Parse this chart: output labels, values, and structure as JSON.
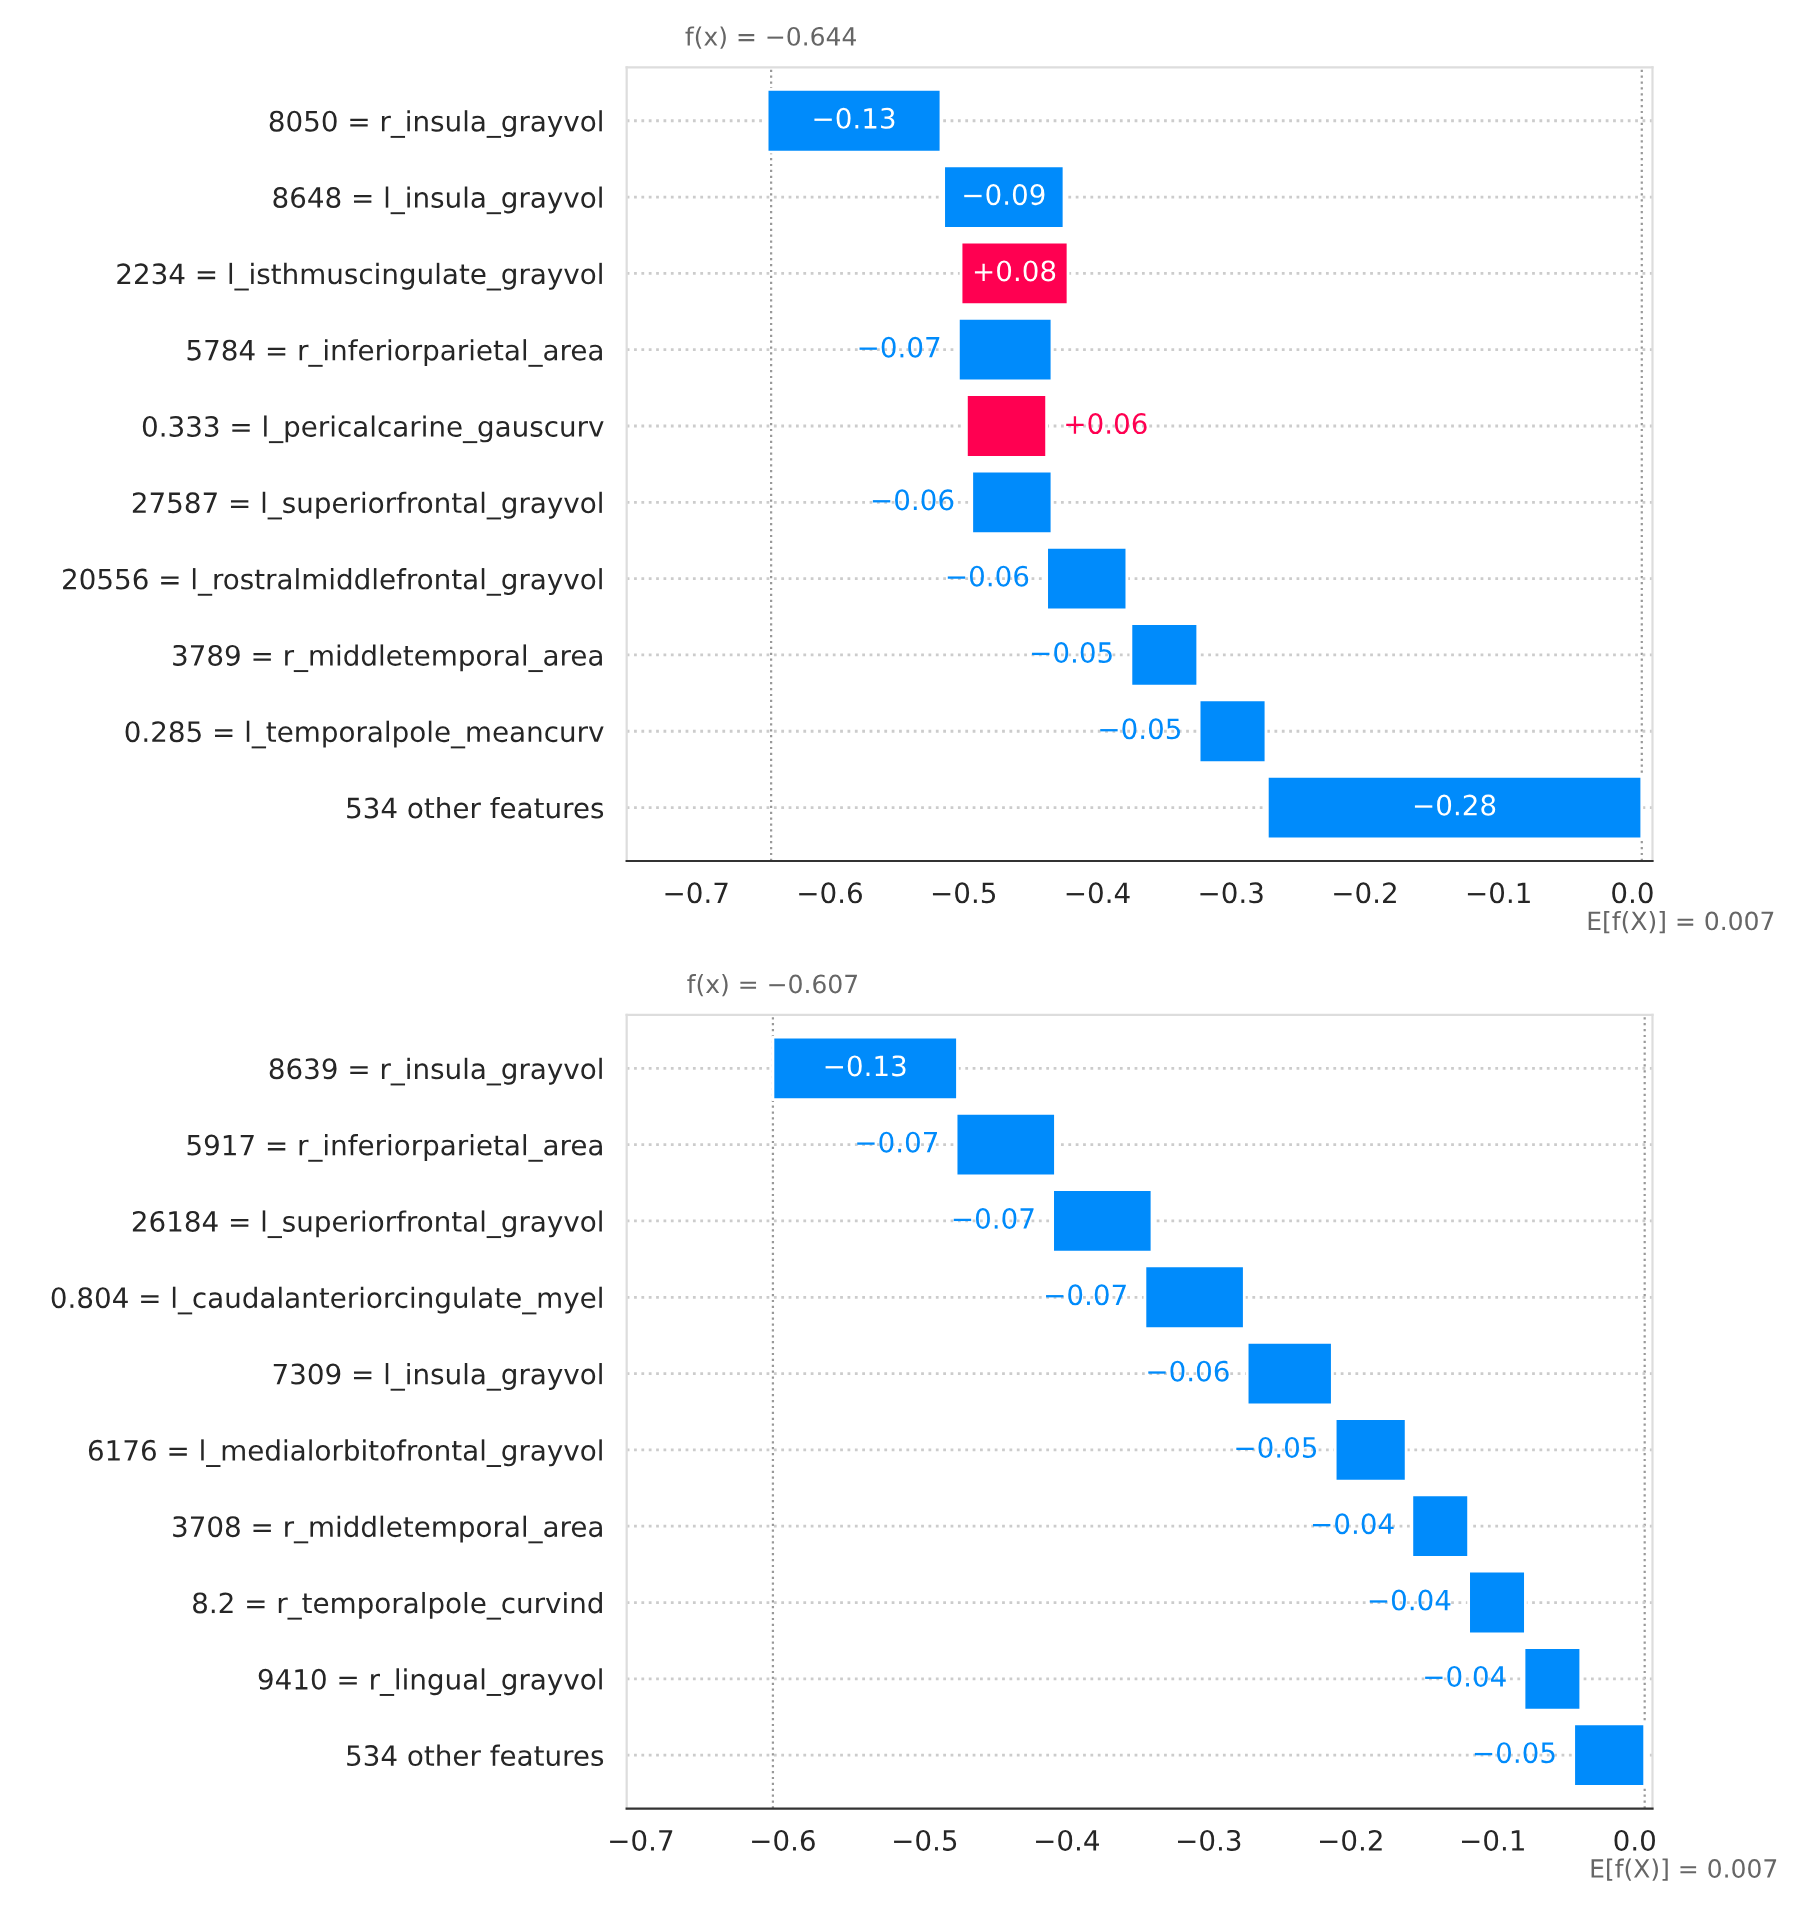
{
  "chart_data": [
    {
      "type": "bar",
      "orientation": "horizontal",
      "categories": [
        "8050 = r_insula_grayvol",
        "8648 = l_insula_grayvol",
        "2234 = l_isthmuscingulate_grayvol",
        "5784 = r_inferiorparietal_area",
        "0.333 = l_pericalcarine_gauscurv",
        "27587 = l_superiorfrontal_grayvol",
        "20556 = l_rostralmiddlefrontal_grayvol",
        "3789 = r_middletemporal_area",
        "0.285 = l_temporalpole_meancurv",
        "534 other features"
      ],
      "values": [
        -0.13,
        -0.09,
        0.08,
        -0.07,
        0.06,
        -0.06,
        -0.06,
        -0.05,
        -0.05,
        -0.28
      ],
      "base": [
        -0.517,
        -0.425,
        -0.502,
        -0.434,
        -0.498,
        -0.434,
        -0.378,
        -0.325,
        -0.274,
        0.007
      ],
      "value_labels": [
        "−0.13",
        "−0.09",
        "+0.08",
        "−0.07",
        "+0.06",
        "−0.06",
        "−0.06",
        "−0.05",
        "−0.05",
        "−0.28"
      ],
      "colors": [
        "#008bfb",
        "#008bfb",
        "#ff0051",
        "#008bfb",
        "#ff0051",
        "#008bfb",
        "#008bfb",
        "#008bfb",
        "#008bfb",
        "#008bfb"
      ],
      "xlim": [
        -0.752,
        0.015
      ],
      "xticks": [
        {
          "value": -0.7,
          "label": "−0.7"
        },
        {
          "value": -0.6,
          "label": "−0.6"
        },
        {
          "value": -0.5,
          "label": "−0.5"
        },
        {
          "value": -0.4,
          "label": "−0.4"
        },
        {
          "value": -0.3,
          "label": "−0.3"
        },
        {
          "value": -0.2,
          "label": "−0.2"
        },
        {
          "value": -0.1,
          "label": "−0.1"
        },
        {
          "value": 0.0,
          "label": "0.0"
        }
      ],
      "ref_lines": [
        {
          "axis": "x",
          "value": -0.644,
          "label": "f(x) = −0.644",
          "color": "#999999",
          "line_style": "dotted"
        },
        {
          "axis": "x",
          "value": 0.007,
          "label": "E[f(X)] = 0.007",
          "color": "#999999",
          "line_style": "dotted"
        }
      ],
      "grid": "y",
      "legend": false
    },
    {
      "type": "bar",
      "orientation": "horizontal",
      "categories": [
        "8639 = r_insula_grayvol",
        "5917 = r_inferiorparietal_area",
        "26184 = l_superiorfrontal_grayvol",
        "0.804 = l_caudalanteriorcingulate_myel",
        "7309 = l_insula_grayvol",
        "6176 = l_medialorbitofrontal_grayvol",
        "3708 = r_middletemporal_area",
        "8.2 = r_temporalpole_curvind",
        "9410 = r_lingual_grayvol",
        "534 other features"
      ],
      "values": [
        -0.13,
        -0.07,
        -0.07,
        -0.07,
        -0.06,
        -0.05,
        -0.04,
        -0.04,
        -0.04,
        -0.05
      ],
      "base": [
        -0.477,
        -0.408,
        -0.34,
        -0.275,
        -0.213,
        -0.161,
        -0.117,
        -0.077,
        -0.038,
        0.007
      ],
      "value_labels": [
        "−0.13",
        "−0.07",
        "−0.07",
        "−0.07",
        "−0.06",
        "−0.05",
        "−0.04",
        "−0.04",
        "−0.04",
        "−0.05"
      ],
      "colors": [
        "#008bfb",
        "#008bfb",
        "#008bfb",
        "#008bfb",
        "#008bfb",
        "#008bfb",
        "#008bfb",
        "#008bfb",
        "#008bfb",
        "#008bfb"
      ],
      "xlim": [
        -0.71,
        0.0125
      ],
      "xticks": [
        {
          "value": -0.7,
          "label": "−0.7"
        },
        {
          "value": -0.6,
          "label": "−0.6"
        },
        {
          "value": -0.5,
          "label": "−0.5"
        },
        {
          "value": -0.4,
          "label": "−0.4"
        },
        {
          "value": -0.3,
          "label": "−0.3"
        },
        {
          "value": -0.2,
          "label": "−0.2"
        },
        {
          "value": -0.1,
          "label": "−0.1"
        },
        {
          "value": 0.0,
          "label": "0.0"
        }
      ],
      "ref_lines": [
        {
          "axis": "x",
          "value": -0.607,
          "label": "f(x) = −0.607",
          "color": "#999999",
          "line_style": "dotted"
        },
        {
          "axis": "x",
          "value": 0.007,
          "label": "E[f(X)] = 0.007",
          "color": "#999999",
          "line_style": "dotted"
        }
      ],
      "grid": "y",
      "legend": false
    }
  ]
}
